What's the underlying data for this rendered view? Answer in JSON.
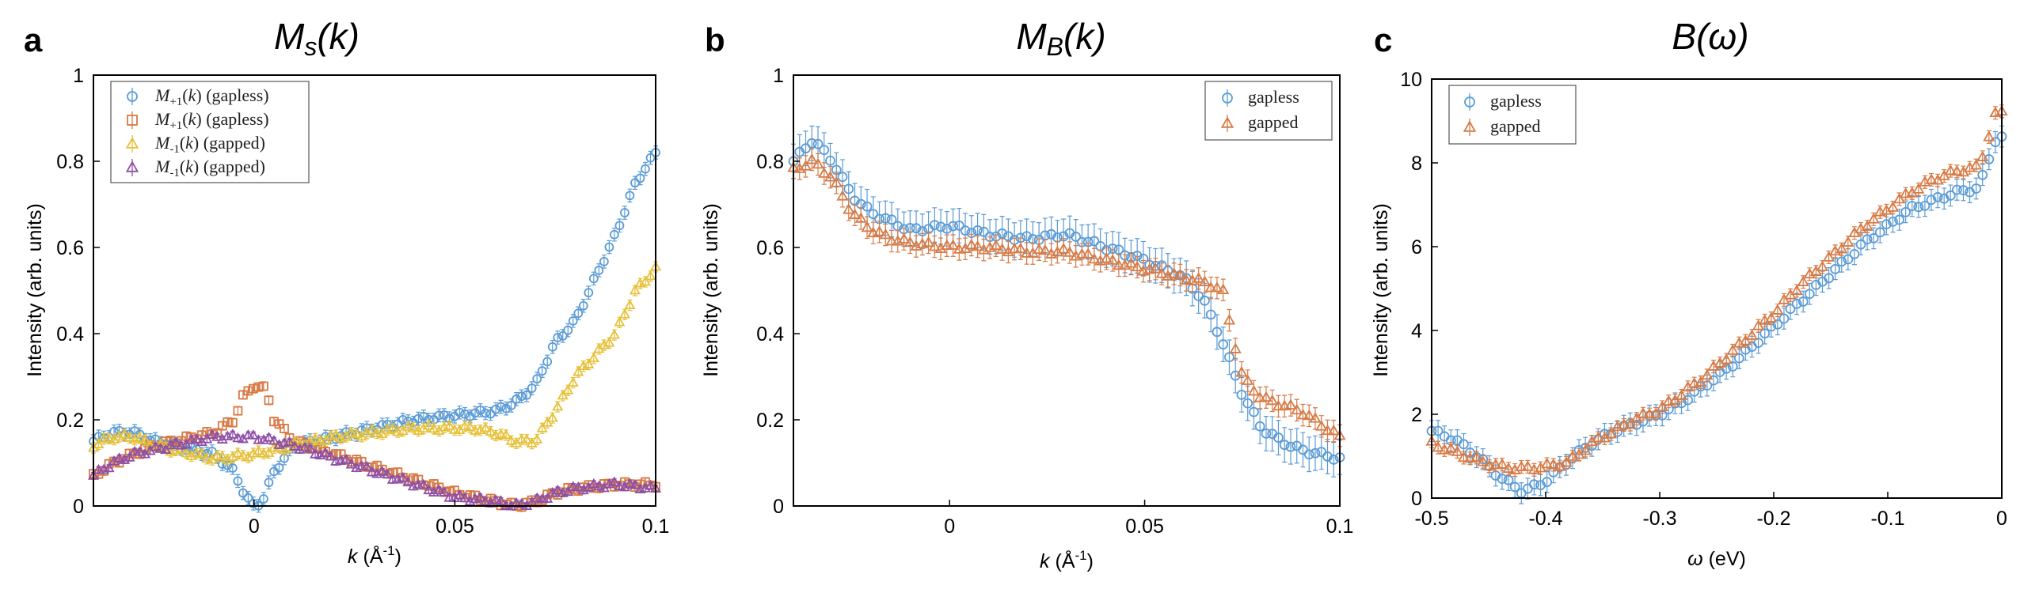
{
  "colors": {
    "blue": "#5B9BD5",
    "orange": "#D77A45",
    "yellow": "#E6C13A",
    "purple": "#8E4FA6"
  },
  "chart_data": [
    {
      "panel": "a",
      "type": "scatter",
      "title": "M_s(k)",
      "xlabel": "k (Å⁻¹)",
      "ylabel": "Intensity (arb. units)",
      "xlim": [
        -0.04,
        0.1
      ],
      "ylim": [
        0,
        1
      ],
      "xticks": [
        0,
        0.05,
        0.1
      ],
      "xtick_labels": [
        "0",
        "0.05",
        "0.1"
      ],
      "yticks": [
        0,
        0.2,
        0.4,
        0.6,
        0.8,
        1
      ],
      "ytick_labels": [
        "0",
        "0.2",
        "0.4",
        "0.6",
        "0.8",
        "1"
      ],
      "legend_position": "top-left",
      "series": [
        {
          "name": "M+1(k) (gapless)",
          "color": "blue",
          "marker": "circle",
          "err": 0.015,
          "points": [
            [
              -0.04,
              0.15
            ],
            [
              -0.035,
              0.17
            ],
            [
              -0.03,
              0.17
            ],
            [
              -0.025,
              0.15
            ],
            [
              -0.02,
              0.14
            ],
            [
              -0.015,
              0.13
            ],
            [
              -0.01,
              0.12
            ],
            [
              -0.005,
              0.08
            ],
            [
              -0.002,
              0.02
            ],
            [
              0,
              0.0
            ],
            [
              0.002,
              0.01
            ],
            [
              0.005,
              0.08
            ],
            [
              0.01,
              0.14
            ],
            [
              0.02,
              0.16
            ],
            [
              0.03,
              0.18
            ],
            [
              0.04,
              0.2
            ],
            [
              0.05,
              0.21
            ],
            [
              0.06,
              0.22
            ],
            [
              0.065,
              0.24
            ],
            [
              0.07,
              0.28
            ],
            [
              0.075,
              0.38
            ],
            [
              0.08,
              0.43
            ],
            [
              0.085,
              0.53
            ],
            [
              0.09,
              0.63
            ],
            [
              0.095,
              0.75
            ],
            [
              0.1,
              0.82
            ]
          ]
        },
        {
          "name": "M+1(k) (gapless)",
          "color": "orange",
          "marker": "square",
          "err": 0.01,
          "points": [
            [
              -0.04,
              0.07
            ],
            [
              -0.035,
              0.1
            ],
            [
              -0.03,
              0.12
            ],
            [
              -0.025,
              0.14
            ],
            [
              -0.02,
              0.15
            ],
            [
              -0.015,
              0.16
            ],
            [
              -0.01,
              0.17
            ],
            [
              -0.005,
              0.2
            ],
            [
              -0.003,
              0.25
            ],
            [
              0,
              0.28
            ],
            [
              0.003,
              0.27
            ],
            [
              0.005,
              0.2
            ],
            [
              0.01,
              0.15
            ],
            [
              0.02,
              0.12
            ],
            [
              0.03,
              0.09
            ],
            [
              0.04,
              0.06
            ],
            [
              0.05,
              0.03
            ],
            [
              0.06,
              0.01
            ],
            [
              0.065,
              0.0
            ],
            [
              0.07,
              0.01
            ],
            [
              0.075,
              0.03
            ],
            [
              0.08,
              0.04
            ],
            [
              0.09,
              0.05
            ],
            [
              0.1,
              0.05
            ]
          ]
        },
        {
          "name": "M-1(k) (gapped)",
          "color": "yellow",
          "marker": "triangle",
          "err": 0.012,
          "points": [
            [
              -0.04,
              0.14
            ],
            [
              -0.035,
              0.16
            ],
            [
              -0.03,
              0.16
            ],
            [
              -0.025,
              0.14
            ],
            [
              -0.02,
              0.13
            ],
            [
              -0.015,
              0.12
            ],
            [
              -0.01,
              0.11
            ],
            [
              0,
              0.12
            ],
            [
              0.01,
              0.14
            ],
            [
              0.02,
              0.16
            ],
            [
              0.03,
              0.17
            ],
            [
              0.04,
              0.18
            ],
            [
              0.05,
              0.18
            ],
            [
              0.055,
              0.18
            ],
            [
              0.06,
              0.17
            ],
            [
              0.065,
              0.15
            ],
            [
              0.07,
              0.15
            ],
            [
              0.075,
              0.22
            ],
            [
              0.08,
              0.3
            ],
            [
              0.085,
              0.35
            ],
            [
              0.09,
              0.4
            ],
            [
              0.095,
              0.5
            ],
            [
              0.1,
              0.55
            ]
          ]
        },
        {
          "name": "M-1(k) (gapped)",
          "color": "purple",
          "marker": "triangle",
          "err": 0.008,
          "points": [
            [
              -0.04,
              0.07
            ],
            [
              -0.035,
              0.1
            ],
            [
              -0.03,
              0.12
            ],
            [
              -0.025,
              0.13
            ],
            [
              -0.02,
              0.14
            ],
            [
              -0.015,
              0.15
            ],
            [
              -0.01,
              0.16
            ],
            [
              -0.005,
              0.16
            ],
            [
              0,
              0.16
            ],
            [
              0.005,
              0.15
            ],
            [
              0.01,
              0.14
            ],
            [
              0.02,
              0.11
            ],
            [
              0.03,
              0.08
            ],
            [
              0.04,
              0.05
            ],
            [
              0.05,
              0.02
            ],
            [
              0.06,
              0.01
            ],
            [
              0.065,
              0.0
            ],
            [
              0.07,
              0.01
            ],
            [
              0.075,
              0.03
            ],
            [
              0.08,
              0.04
            ],
            [
              0.09,
              0.05
            ],
            [
              0.1,
              0.04
            ]
          ]
        }
      ]
    },
    {
      "panel": "b",
      "type": "scatter",
      "title": "M_B(k)",
      "xlabel": "k (Å⁻¹)",
      "ylabel": "Intensity (arb. units)",
      "xlim": [
        -0.04,
        0.1
      ],
      "ylim": [
        0,
        1
      ],
      "xticks": [
        0,
        0.05,
        0.1
      ],
      "xtick_labels": [
        "0",
        "0.05",
        "0.1"
      ],
      "yticks": [
        0,
        0.2,
        0.4,
        0.6,
        0.8,
        1
      ],
      "ytick_labels": [
        "0",
        "0.2",
        "0.4",
        "0.6",
        "0.8",
        "1"
      ],
      "legend_position": "top-right",
      "series": [
        {
          "name": "gapless",
          "color": "blue",
          "marker": "circle",
          "err": 0.04,
          "points": [
            [
              -0.04,
              0.8
            ],
            [
              -0.035,
              0.85
            ],
            [
              -0.03,
              0.8
            ],
            [
              -0.025,
              0.72
            ],
            [
              -0.02,
              0.68
            ],
            [
              -0.015,
              0.66
            ],
            [
              -0.01,
              0.64
            ],
            [
              0,
              0.65
            ],
            [
              0.01,
              0.63
            ],
            [
              0.02,
              0.62
            ],
            [
              0.03,
              0.63
            ],
            [
              0.04,
              0.6
            ],
            [
              0.05,
              0.57
            ],
            [
              0.06,
              0.53
            ],
            [
              0.065,
              0.48
            ],
            [
              0.07,
              0.38
            ],
            [
              0.075,
              0.26
            ],
            [
              0.08,
              0.18
            ],
            [
              0.085,
              0.15
            ],
            [
              0.09,
              0.13
            ],
            [
              0.1,
              0.11
            ]
          ]
        },
        {
          "name": "gapped",
          "color": "orange",
          "marker": "triangle",
          "err": 0.025,
          "points": [
            [
              -0.04,
              0.78
            ],
            [
              -0.035,
              0.8
            ],
            [
              -0.03,
              0.76
            ],
            [
              -0.025,
              0.68
            ],
            [
              -0.02,
              0.64
            ],
            [
              -0.015,
              0.62
            ],
            [
              -0.01,
              0.61
            ],
            [
              0,
              0.6
            ],
            [
              0.01,
              0.6
            ],
            [
              0.02,
              0.59
            ],
            [
              0.03,
              0.59
            ],
            [
              0.04,
              0.57
            ],
            [
              0.05,
              0.55
            ],
            [
              0.06,
              0.53
            ],
            [
              0.065,
              0.52
            ],
            [
              0.07,
              0.5
            ],
            [
              0.075,
              0.3
            ],
            [
              0.08,
              0.25
            ],
            [
              0.09,
              0.22
            ],
            [
              0.1,
              0.16
            ]
          ]
        }
      ]
    },
    {
      "panel": "c",
      "type": "scatter",
      "title": "B(ω)",
      "xlabel": "ω (eV)",
      "ylabel": "Intensity (arb. units)",
      "xlim": [
        -0.5,
        0
      ],
      "ylim": [
        0,
        10
      ],
      "xticks": [
        -0.5,
        -0.4,
        -0.3,
        -0.2,
        -0.1,
        0
      ],
      "xtick_labels": [
        "-0.5",
        "-0.4",
        "-0.3",
        "-0.2",
        "-0.1",
        "0"
      ],
      "yticks": [
        0,
        2,
        4,
        6,
        8,
        10
      ],
      "ytick_labels": [
        "0",
        "2",
        "4",
        "6",
        "8",
        "10"
      ],
      "legend_position": "top-left",
      "series": [
        {
          "name": "gapless",
          "color": "blue",
          "marker": "circle",
          "err": 0.25,
          "points": [
            [
              -0.5,
              1.6
            ],
            [
              -0.48,
              1.4
            ],
            [
              -0.46,
              1.0
            ],
            [
              -0.44,
              0.5
            ],
            [
              -0.42,
              0.15
            ],
            [
              -0.4,
              0.4
            ],
            [
              -0.38,
              0.9
            ],
            [
              -0.36,
              1.3
            ],
            [
              -0.34,
              1.6
            ],
            [
              -0.32,
              1.8
            ],
            [
              -0.3,
              2.0
            ],
            [
              -0.28,
              2.3
            ],
            [
              -0.26,
              2.7
            ],
            [
              -0.24,
              3.1
            ],
            [
              -0.22,
              3.6
            ],
            [
              -0.2,
              4.1
            ],
            [
              -0.18,
              4.6
            ],
            [
              -0.16,
              5.1
            ],
            [
              -0.14,
              5.6
            ],
            [
              -0.12,
              6.1
            ],
            [
              -0.1,
              6.5
            ],
            [
              -0.08,
              6.9
            ],
            [
              -0.06,
              7.1
            ],
            [
              -0.04,
              7.3
            ],
            [
              -0.02,
              7.4
            ],
            [
              -0.005,
              8.6
            ]
          ]
        },
        {
          "name": "gapped",
          "color": "orange",
          "marker": "triangle",
          "err": 0.15,
          "points": [
            [
              -0.5,
              1.3
            ],
            [
              -0.48,
              1.1
            ],
            [
              -0.46,
              0.9
            ],
            [
              -0.44,
              0.75
            ],
            [
              -0.42,
              0.7
            ],
            [
              -0.4,
              0.75
            ],
            [
              -0.38,
              0.85
            ],
            [
              -0.36,
              1.3
            ],
            [
              -0.34,
              1.6
            ],
            [
              -0.32,
              1.9
            ],
            [
              -0.3,
              2.1
            ],
            [
              -0.28,
              2.5
            ],
            [
              -0.26,
              2.9
            ],
            [
              -0.24,
              3.4
            ],
            [
              -0.22,
              3.9
            ],
            [
              -0.2,
              4.4
            ],
            [
              -0.18,
              5.0
            ],
            [
              -0.16,
              5.5
            ],
            [
              -0.14,
              6.0
            ],
            [
              -0.12,
              6.5
            ],
            [
              -0.1,
              6.9
            ],
            [
              -0.08,
              7.3
            ],
            [
              -0.06,
              7.6
            ],
            [
              -0.04,
              7.8
            ],
            [
              -0.02,
              7.9
            ],
            [
              -0.005,
              9.2
            ]
          ]
        }
      ]
    }
  ]
}
